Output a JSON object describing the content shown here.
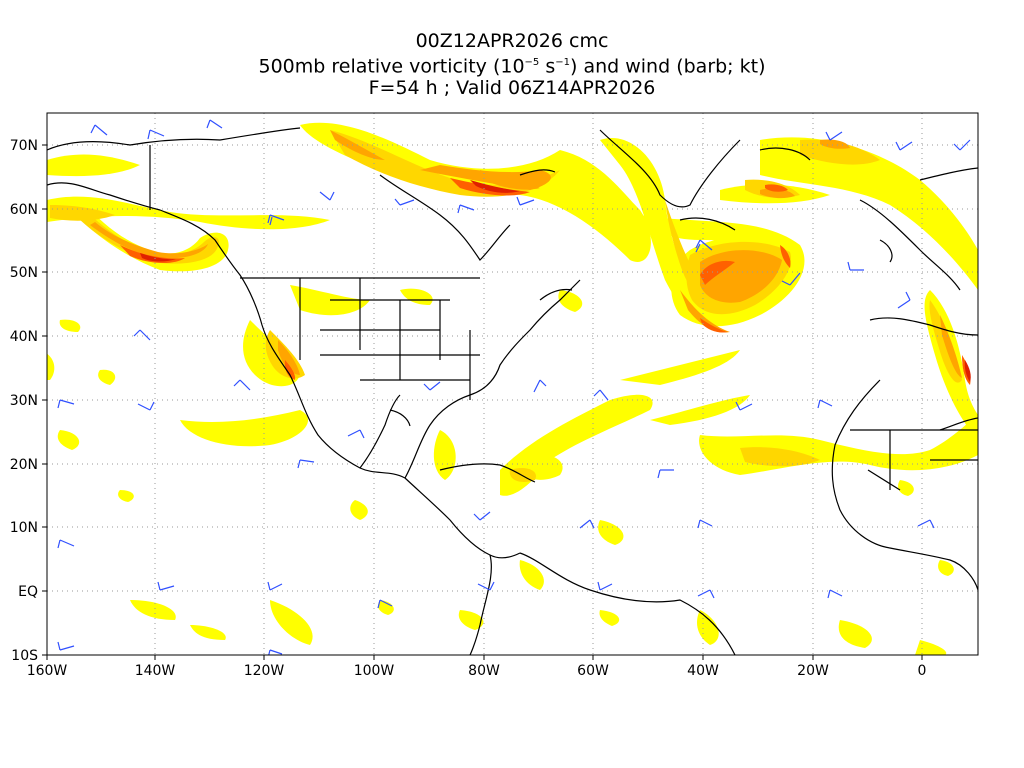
{
  "title": {
    "line1": "00Z12APR2026 cmc",
    "line2_pre": "500mb relative vorticity (10",
    "line2_exp1": "−5",
    "line2_mid": " s",
    "line2_exp2": "−1",
    "line2_post": ") and wind (barb; kt)",
    "line3": "F=54 h ; Valid 06Z14APR2026"
  },
  "axes": {
    "lat_labels": [
      "70N",
      "60N",
      "50N",
      "40N",
      "30N",
      "20N",
      "10N",
      "EQ",
      "10S"
    ],
    "lon_labels": [
      "160W",
      "140W",
      "120W",
      "100W",
      "80W",
      "60W",
      "40W",
      "20W",
      "0"
    ]
  },
  "map": {
    "lon_range": [
      -160,
      10
    ],
    "lat_range": [
      -10,
      75
    ],
    "grid": "dotted",
    "colors": {
      "vort_low": "#ffff00",
      "vort_mid1": "#ffd700",
      "vort_mid2": "#ffa500",
      "vort_high": "#ff6000",
      "vort_max": "#e02000",
      "barb": "#3050ff",
      "coast": "#000000"
    }
  }
}
